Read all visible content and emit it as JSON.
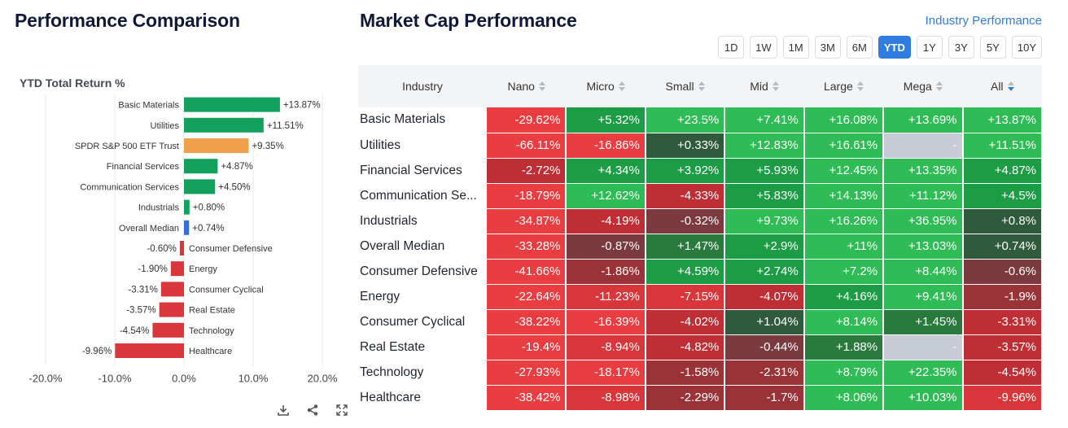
{
  "left": {
    "title": "Performance Comparison",
    "chart_title": "YTD Total Return %",
    "tools": [
      {
        "name": "download-icon"
      },
      {
        "name": "share-icon"
      },
      {
        "name": "fullscreen-icon"
      }
    ]
  },
  "chart_data": {
    "type": "bar",
    "orientation": "horizontal",
    "title": "YTD Total Return %",
    "categories": [
      "Basic Materials",
      "Utilities",
      "SPDR S&P 500 ETF Trust",
      "Financial Services",
      "Communication Services",
      "Industrials",
      "Overall Median",
      "Consumer Defensive",
      "Energy",
      "Consumer Cyclical",
      "Real Estate",
      "Technology",
      "Healthcare"
    ],
    "values": [
      13.87,
      11.51,
      9.35,
      4.87,
      4.5,
      0.8,
      0.74,
      -0.6,
      -1.9,
      -3.31,
      -3.57,
      -4.54,
      -9.96
    ],
    "value_labels": [
      "+13.87%",
      "+11.51%",
      "+9.35%",
      "+4.87%",
      "+4.50%",
      "+0.80%",
      "+0.74%",
      "-0.60%",
      "-1.90%",
      "-3.31%",
      "-3.57%",
      "-4.54%",
      "-9.96%"
    ],
    "bar_colors": [
      "#12a05c",
      "#12a05c",
      "#f0a04b",
      "#12a05c",
      "#12a05c",
      "#12a05c",
      "#2f6fd6",
      "#d9373b",
      "#d9373b",
      "#d9373b",
      "#d9373b",
      "#d9373b",
      "#d9373b"
    ],
    "xlim": [
      -20,
      20
    ],
    "xticks": [
      -20,
      -10,
      0,
      10,
      20
    ],
    "xtick_labels": [
      "-20.0%",
      "-10.0%",
      "0.0%",
      "10.0%",
      "20.0%"
    ],
    "grid": true
  },
  "right": {
    "title": "Market Cap Performance",
    "link": "Industry Performance",
    "periods": [
      "1D",
      "1W",
      "1M",
      "3M",
      "6M",
      "YTD",
      "1Y",
      "3Y",
      "5Y",
      "10Y"
    ],
    "active_period": "YTD",
    "columns": [
      "Industry",
      "Nano",
      "Micro",
      "Small",
      "Mid",
      "Large",
      "Mega",
      "All"
    ],
    "sorted_column": "All",
    "rows": [
      {
        "industry": "Basic Materials",
        "values": [
          "-29.62%",
          "+5.32%",
          "+23.5%",
          "+7.41%",
          "+16.08%",
          "+13.69%",
          "+13.87%"
        ]
      },
      {
        "industry": "Utilities",
        "values": [
          "-66.11%",
          "-16.86%",
          "+0.33%",
          "+12.83%",
          "+16.61%",
          "-",
          "+11.51%"
        ]
      },
      {
        "industry": "Financial Services",
        "values": [
          "-2.72%",
          "+4.34%",
          "+3.92%",
          "+5.93%",
          "+12.45%",
          "+13.35%",
          "+4.87%"
        ]
      },
      {
        "industry": "Communication Se...",
        "values": [
          "-18.79%",
          "+12.62%",
          "-4.33%",
          "+5.83%",
          "+14.13%",
          "+11.12%",
          "+4.5%"
        ]
      },
      {
        "industry": "Industrials",
        "values": [
          "-34.87%",
          "-4.19%",
          "-0.32%",
          "+9.73%",
          "+16.26%",
          "+36.95%",
          "+0.8%"
        ]
      },
      {
        "industry": "Overall Median",
        "values": [
          "-33.28%",
          "-0.87%",
          "+1.47%",
          "+2.9%",
          "+11%",
          "+13.03%",
          "+0.74%"
        ]
      },
      {
        "industry": "Consumer Defensive",
        "values": [
          "-41.66%",
          "-1.86%",
          "+4.59%",
          "+2.74%",
          "+7.2%",
          "+8.44%",
          "-0.6%"
        ]
      },
      {
        "industry": "Energy",
        "values": [
          "-22.64%",
          "-11.23%",
          "-7.15%",
          "-4.07%",
          "+4.16%",
          "+9.41%",
          "-1.9%"
        ]
      },
      {
        "industry": "Consumer Cyclical",
        "values": [
          "-38.22%",
          "-16.39%",
          "-4.02%",
          "+1.04%",
          "+8.14%",
          "+1.45%",
          "-3.31%"
        ]
      },
      {
        "industry": "Real Estate",
        "values": [
          "-19.4%",
          "-8.94%",
          "-4.82%",
          "-0.44%",
          "+1.88%",
          "-",
          "-3.57%"
        ]
      },
      {
        "industry": "Technology",
        "values": [
          "-27.93%",
          "-18.17%",
          "-1.58%",
          "-2.31%",
          "+8.79%",
          "+22.35%",
          "-4.54%"
        ]
      },
      {
        "industry": "Healthcare",
        "values": [
          "-38.42%",
          "-8.98%",
          "-2.29%",
          "-1.7%",
          "+8.06%",
          "+10.03%",
          "-9.96%"
        ]
      }
    ]
  }
}
